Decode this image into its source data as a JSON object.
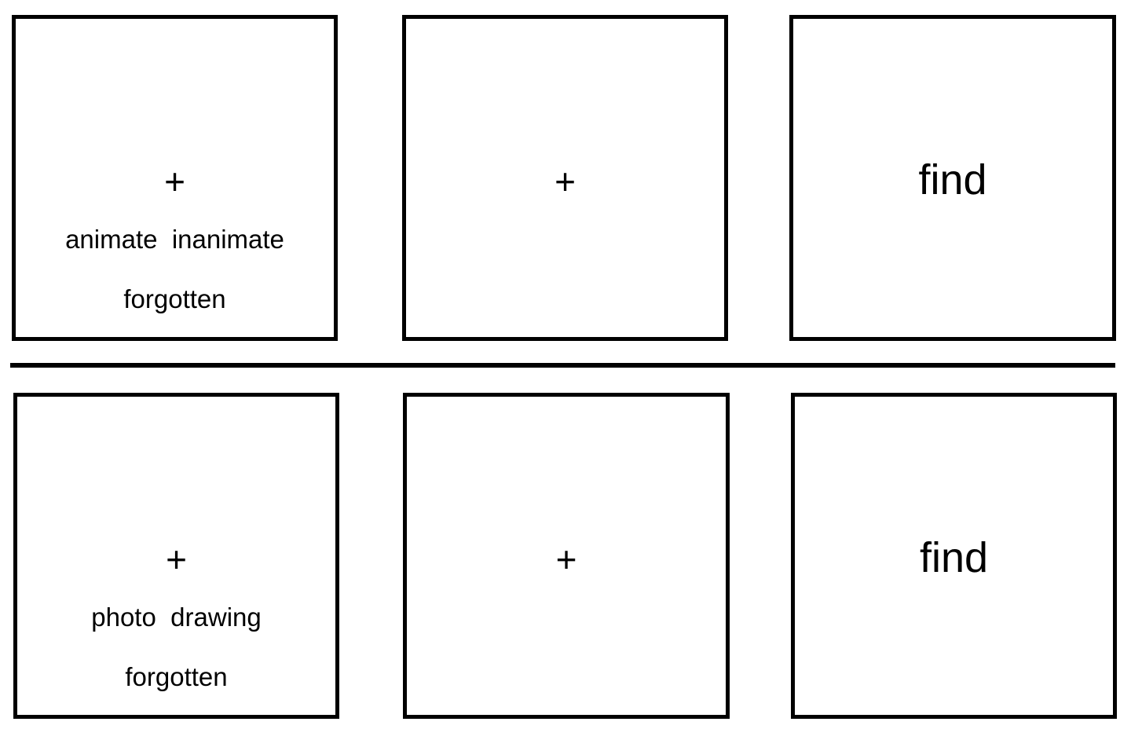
{
  "rows": [
    {
      "cue_panel": {
        "fixation": "+",
        "category_line": "animate  inanimate",
        "forgotten_label": "forgotten"
      },
      "delay_panel": {
        "fixation": "+"
      },
      "probe_panel": {
        "probe": "find"
      }
    },
    {
      "cue_panel": {
        "fixation": "+",
        "category_line": "photo  drawing",
        "forgotten_label": "forgotten"
      },
      "delay_panel": {
        "fixation": "+"
      },
      "probe_panel": {
        "probe": "find"
      }
    }
  ],
  "colors": {
    "border": "#000000",
    "background": "#ffffff",
    "text": "#000000"
  }
}
